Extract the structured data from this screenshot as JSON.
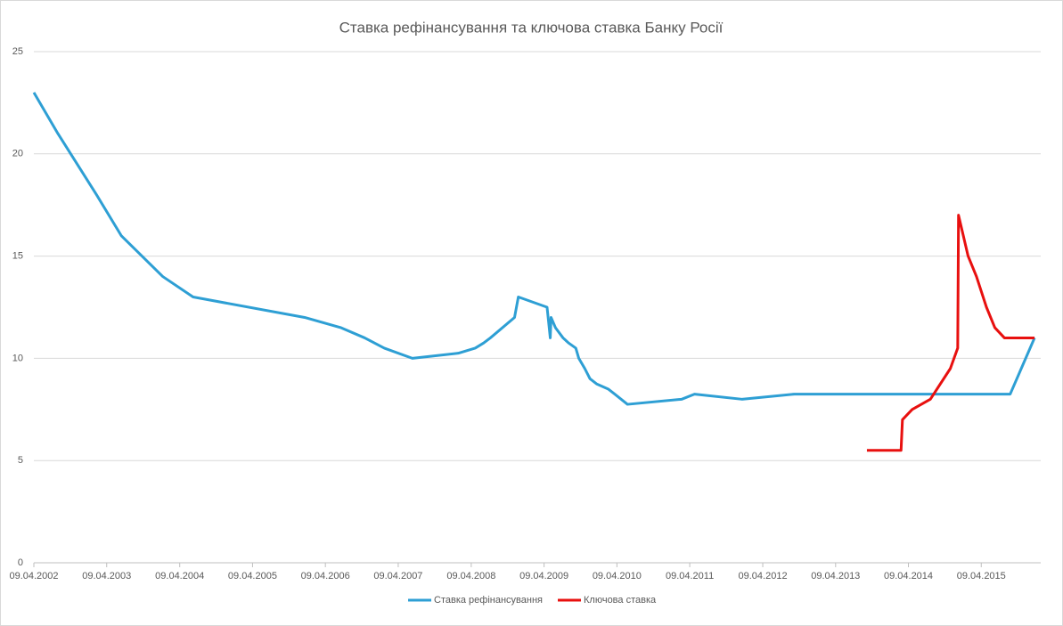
{
  "chart_data": {
    "type": "line",
    "title": "Ставка рефінансування та ключова ставка Банку Росії",
    "xlim": [
      "09.04.2002",
      "01.02.2016"
    ],
    "xticks": [
      "09.04.2002",
      "09.04.2003",
      "09.04.2004",
      "09.04.2005",
      "09.04.2006",
      "09.04.2007",
      "09.04.2008",
      "09.04.2009",
      "09.04.2010",
      "09.04.2011",
      "09.04.2012",
      "09.04.2013",
      "09.04.2014",
      "09.04.2015"
    ],
    "ylim": [
      0,
      25
    ],
    "yticks": [
      0,
      5,
      10,
      15,
      20,
      25
    ],
    "grid": true,
    "series": [
      {
        "name": "Ставка рефінансування",
        "color": "#2e9fd4",
        "x": [
          "09.04.2002",
          "07.08.2002",
          "17.02.2003",
          "21.06.2003",
          "15.01.2004",
          "15.06.2004",
          "26.12.2005",
          "26.06.2006",
          "23.10.2006",
          "29.01.2007",
          "19.06.2007",
          "04.02.2008",
          "29.04.2008",
          "10.06.2008",
          "14.07.2008",
          "12.11.2008",
          "01.12.2008",
          "24.04.2009",
          "10.05.2009",
          "14.05.2009",
          "05.06.2009",
          "13.07.2009",
          "10.08.2009",
          "15.09.2009",
          "30.09.2009",
          "30.10.2009",
          "25.11.2009",
          "28.12.2009",
          "24.02.2010",
          "29.03.2010",
          "30.04.2010",
          "01.06.2010",
          "28.02.2011",
          "03.05.2011",
          "26.12.2011",
          "14.09.2012",
          "01.09.2015",
          "01.01.2016"
        ],
        "values": [
          23,
          21,
          18,
          16,
          14,
          13,
          12,
          11.5,
          11,
          10.5,
          10,
          10.25,
          10.5,
          10.75,
          11,
          12,
          13,
          12.5,
          11,
          12,
          11.5,
          11,
          10.75,
          10.5,
          10,
          9.5,
          9,
          8.75,
          8.5,
          8.25,
          8,
          7.75,
          8,
          8.25,
          8,
          8.25,
          8.25,
          11
        ]
      },
      {
        "name": "Ключова ставка",
        "color": "#e8100f",
        "x": [
          "13.09.2013",
          "03.03.2014",
          "10.03.2014",
          "28.04.2014",
          "28.07.2014",
          "05.11.2014",
          "12.12.2014",
          "16.12.2014",
          "02.02.2015",
          "16.03.2015",
          "05.05.2015",
          "16.06.2015",
          "03.08.2015",
          "01.01.2016"
        ],
        "values": [
          5.5,
          5.5,
          7,
          7.5,
          8,
          9.5,
          10.5,
          17,
          15,
          14,
          12.5,
          11.5,
          11,
          11
        ]
      }
    ]
  }
}
